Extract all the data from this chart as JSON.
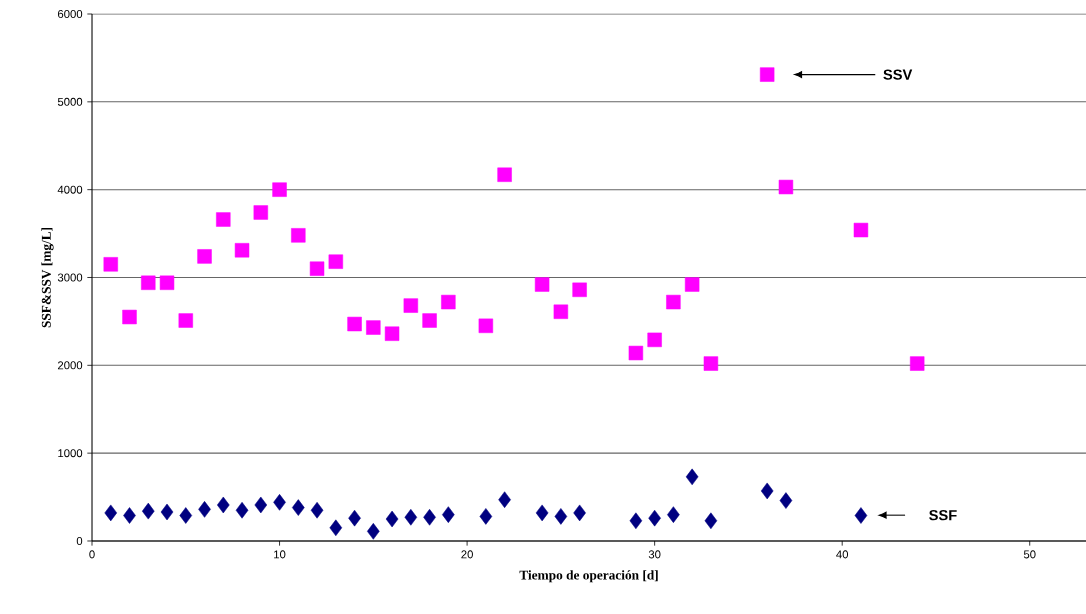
{
  "chart_data": {
    "type": "scatter",
    "xlabel": "Tiempo de operación [d]",
    "ylabel": "SSF&SSV [mg/L]",
    "xlim": [
      0,
      53
    ],
    "xticks": [
      0,
      10,
      20,
      30,
      40,
      50
    ],
    "ylim": [
      0,
      6000
    ],
    "yticks": [
      0,
      1000,
      2000,
      3000,
      4000,
      5000,
      6000
    ],
    "grid": "y",
    "series": [
      {
        "color": "#ff00ff",
        "marker": "square",
        "x": [
          1,
          2,
          3,
          4,
          5,
          6,
          7,
          8,
          9,
          10,
          11,
          12,
          13,
          14,
          15,
          16,
          17,
          18,
          19,
          21,
          22,
          24,
          25,
          26,
          29,
          30,
          31,
          32,
          33,
          36,
          37,
          41,
          44
        ],
        "values": [
          3150,
          2550,
          2940,
          2940,
          2510,
          3240,
          3660,
          3310,
          3740,
          4000,
          3480,
          3100,
          3180,
          2470,
          2430,
          2360,
          2680,
          2510,
          2720,
          2450,
          4170,
          2920,
          2610,
          2860,
          2140,
          2290,
          2720,
          2920,
          2020,
          5310,
          4030,
          3540,
          2020
        ]
      },
      {
        "color": "#000080",
        "marker": "diamond",
        "x": [
          1,
          2,
          3,
          4,
          5,
          6,
          7,
          8,
          9,
          10,
          11,
          12,
          13,
          14,
          15,
          16,
          17,
          18,
          19,
          21,
          22,
          24,
          25,
          26,
          29,
          30,
          31,
          32,
          33,
          36,
          37,
          41
        ],
        "values": [
          320,
          290,
          340,
          330,
          290,
          360,
          410,
          350,
          410,
          440,
          380,
          350,
          150,
          260,
          110,
          250,
          270,
          270,
          300,
          280,
          470,
          320,
          280,
          320,
          230,
          260,
          300,
          730,
          230,
          570,
          460,
          290
        ]
      }
    ],
    "annotations": [
      "SSV",
      "SSF"
    ]
  }
}
